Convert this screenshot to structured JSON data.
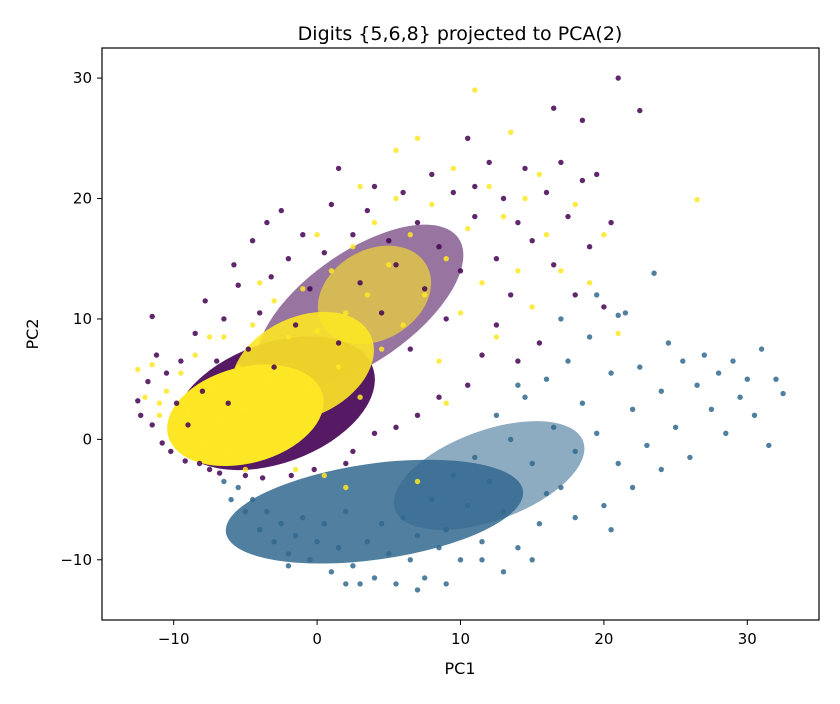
{
  "chart_data": {
    "type": "scatter",
    "title": "Digits {5,6,8} projected to PCA(2)",
    "xlabel": "PC1",
    "ylabel": "PC2",
    "xlim": [
      -15,
      35
    ],
    "ylim": [
      -15,
      32.5
    ],
    "xticks": [
      -10,
      0,
      10,
      20,
      30
    ],
    "yticks": [
      -10,
      0,
      10,
      20,
      30
    ],
    "grid": false,
    "legend": "none",
    "colors": {
      "class_purple": "#440154",
      "class_teal": "#31688e",
      "class_yellow": "#fde725"
    },
    "series": [
      {
        "color": "#440154",
        "points": [
          [
            -12.5,
            3.2
          ],
          [
            -12.3,
            2.0
          ],
          [
            -11.8,
            4.8
          ],
          [
            -11.5,
            1.2
          ],
          [
            -11.5,
            10.2
          ],
          [
            -11.2,
            7.0
          ],
          [
            -10.8,
            -0.3
          ],
          [
            -10.5,
            5.5
          ],
          [
            -10.2,
            -1.0
          ],
          [
            -9.8,
            3.0
          ],
          [
            -9.5,
            6.5
          ],
          [
            -9.2,
            -1.8
          ],
          [
            -9.0,
            1.2
          ],
          [
            -8.5,
            8.8
          ],
          [
            -8.2,
            -2.0
          ],
          [
            -8.0,
            4.0
          ],
          [
            -7.8,
            11.5
          ],
          [
            -7.5,
            -2.5
          ],
          [
            -7.0,
            6.5
          ],
          [
            -6.8,
            -2.8
          ],
          [
            -6.5,
            10.0
          ],
          [
            -6.2,
            3.0
          ],
          [
            -5.8,
            14.5
          ],
          [
            -5.5,
            12.8
          ],
          [
            -5.0,
            -3.0
          ],
          [
            -4.8,
            7.5
          ],
          [
            -4.5,
            16.5
          ],
          [
            -4.0,
            10.5
          ],
          [
            -3.8,
            -3.2
          ],
          [
            -3.5,
            18.0
          ],
          [
            -3.2,
            13.5
          ],
          [
            -3.0,
            6.0
          ],
          [
            -2.5,
            19.0
          ],
          [
            -2.0,
            15.0
          ],
          [
            -1.8,
            -3.0
          ],
          [
            -1.5,
            9.5
          ],
          [
            -1.0,
            17.0
          ],
          [
            -0.5,
            12.5
          ],
          [
            -0.2,
            -2.5
          ],
          [
            0.5,
            15.5
          ],
          [
            1.0,
            19.5
          ],
          [
            1.5,
            8.0
          ],
          [
            1.5,
            22.5
          ],
          [
            2.0,
            -2.0
          ],
          [
            2.5,
            17.0
          ],
          [
            3.0,
            13.0
          ],
          [
            3.5,
            19.0
          ],
          [
            4.0,
            21.0
          ],
          [
            4.5,
            10.5
          ],
          [
            5.0,
            16.5
          ],
          [
            5.5,
            14.5
          ],
          [
            6.0,
            20.5
          ],
          [
            6.5,
            7.5
          ],
          [
            7.0,
            18.0
          ],
          [
            7.5,
            12.5
          ],
          [
            8.0,
            22.0
          ],
          [
            8.5,
            16.0
          ],
          [
            9.0,
            10.0
          ],
          [
            9.5,
            20.5
          ],
          [
            10.0,
            14.0
          ],
          [
            10.5,
            25.0
          ],
          [
            11.0,
            18.5
          ],
          [
            11.5,
            7.0
          ],
          [
            12.0,
            23.0
          ],
          [
            12.5,
            15.0
          ],
          [
            13.0,
            20.0
          ],
          [
            13.5,
            12.0
          ],
          [
            14.0,
            18.0
          ],
          [
            14.5,
            22.5
          ],
          [
            15.0,
            16.5
          ],
          [
            15.5,
            8.0
          ],
          [
            16.0,
            20.5
          ],
          [
            16.5,
            14.5
          ],
          [
            17.0,
            23.0
          ],
          [
            17.5,
            18.5
          ],
          [
            18.0,
            12.0
          ],
          [
            18.5,
            21.5
          ],
          [
            19.0,
            16.0
          ],
          [
            19.5,
            22.0
          ],
          [
            20.0,
            11.0
          ],
          [
            20.5,
            18.0
          ],
          [
            21.0,
            30.0
          ],
          [
            22.5,
            27.3
          ],
          [
            16.5,
            27.5
          ],
          [
            18.5,
            26.5
          ],
          [
            11.0,
            21.0
          ],
          [
            12.5,
            9.5
          ],
          [
            14.0,
            6.5
          ],
          [
            10.5,
            4.5
          ],
          [
            8.5,
            3.5
          ],
          [
            7.0,
            2.0
          ],
          [
            5.5,
            1.0
          ],
          [
            4.0,
            0.5
          ],
          [
            2.5,
            -1.0
          ]
        ]
      },
      {
        "color": "#31688e",
        "points": [
          [
            -6.5,
            -3.5
          ],
          [
            -6.0,
            -5.0
          ],
          [
            -5.5,
            -4.0
          ],
          [
            -5.0,
            -6.0
          ],
          [
            -4.5,
            -5.0
          ],
          [
            -4.0,
            -7.5
          ],
          [
            -3.5,
            -6.0
          ],
          [
            -3.0,
            -8.5
          ],
          [
            -2.5,
            -7.0
          ],
          [
            -2.0,
            -9.5
          ],
          [
            -1.5,
            -8.0
          ],
          [
            -1.0,
            -6.5
          ],
          [
            -0.5,
            -10.0
          ],
          [
            0.0,
            -8.5
          ],
          [
            0.5,
            -7.0
          ],
          [
            1.0,
            -11.0
          ],
          [
            1.5,
            -9.0
          ],
          [
            2.0,
            -6.0
          ],
          [
            2.5,
            -10.5
          ],
          [
            3.0,
            -12.0
          ],
          [
            3.5,
            -8.5
          ],
          [
            4.0,
            -11.5
          ],
          [
            4.5,
            -7.0
          ],
          [
            5.0,
            -9.5
          ],
          [
            5.5,
            -12.0
          ],
          [
            6.0,
            -6.5
          ],
          [
            6.5,
            -10.0
          ],
          [
            7.0,
            -8.0
          ],
          [
            7.5,
            -11.5
          ],
          [
            8.0,
            -5.0
          ],
          [
            8.5,
            -9.0
          ],
          [
            9.0,
            -7.5
          ],
          [
            9.5,
            -3.0
          ],
          [
            10.0,
            -10.0
          ],
          [
            10.5,
            -5.5
          ],
          [
            11.0,
            -1.5
          ],
          [
            11.5,
            -8.5
          ],
          [
            12.0,
            -3.5
          ],
          [
            12.5,
            2.0
          ],
          [
            13.0,
            -6.0
          ],
          [
            13.5,
            0.0
          ],
          [
            14.0,
            -9.0
          ],
          [
            14.5,
            3.5
          ],
          [
            15.0,
            -2.0
          ],
          [
            15.5,
            -7.0
          ],
          [
            16.0,
            5.0
          ],
          [
            16.5,
            1.0
          ],
          [
            17.0,
            -4.0
          ],
          [
            17.5,
            6.5
          ],
          [
            18.0,
            -1.0
          ],
          [
            18.5,
            3.0
          ],
          [
            19.0,
            8.5
          ],
          [
            19.5,
            0.5
          ],
          [
            20.0,
            -5.5
          ],
          [
            20.5,
            5.5
          ],
          [
            21.0,
            -2.0
          ],
          [
            21.5,
            10.5
          ],
          [
            22.0,
            2.5
          ],
          [
            22.5,
            6.0
          ],
          [
            23.0,
            -0.5
          ],
          [
            23.5,
            13.8
          ],
          [
            24.0,
            4.0
          ],
          [
            24.5,
            8.0
          ],
          [
            25.0,
            1.0
          ],
          [
            25.5,
            6.5
          ],
          [
            26.0,
            -1.5
          ],
          [
            26.5,
            4.5
          ],
          [
            27.0,
            7.0
          ],
          [
            27.5,
            2.5
          ],
          [
            28.0,
            5.5
          ],
          [
            28.5,
            0.5
          ],
          [
            29.0,
            6.5
          ],
          [
            29.5,
            3.5
          ],
          [
            30.0,
            5.0
          ],
          [
            30.5,
            2.0
          ],
          [
            31.0,
            7.5
          ],
          [
            31.5,
            -0.5
          ],
          [
            32.0,
            5.0
          ],
          [
            32.5,
            3.8
          ],
          [
            20.5,
            -7.5
          ],
          [
            22.0,
            -4.0
          ],
          [
            24.0,
            -2.5
          ],
          [
            18.0,
            -6.5
          ],
          [
            15.0,
            -10.0
          ],
          [
            13.0,
            -11.0
          ],
          [
            11.5,
            -10.0
          ],
          [
            9.0,
            -12.0
          ],
          [
            7.0,
            -12.5
          ],
          [
            2.0,
            -12.0
          ],
          [
            -2.0,
            -10.5
          ],
          [
            21.0,
            10.3
          ],
          [
            19.5,
            12.0
          ],
          [
            17.0,
            10.0
          ],
          [
            16.0,
            -4.5
          ],
          [
            14.0,
            4.5
          ]
        ]
      },
      {
        "color": "#fde725",
        "points": [
          [
            -12.5,
            5.8
          ],
          [
            -12.0,
            3.5
          ],
          [
            -11.5,
            6.2
          ],
          [
            -11.0,
            2.0
          ],
          [
            -10.5,
            4.0
          ],
          [
            -10.0,
            0.5
          ],
          [
            -9.5,
            5.5
          ],
          [
            -9.0,
            2.5
          ],
          [
            -8.5,
            7.0
          ],
          [
            -8.0,
            -0.5
          ],
          [
            -7.5,
            4.5
          ],
          [
            -7.0,
            1.5
          ],
          [
            -6.5,
            8.5
          ],
          [
            -6.0,
            -1.0
          ],
          [
            -5.5,
            6.0
          ],
          [
            -5.0,
            2.5
          ],
          [
            -4.5,
            9.5
          ],
          [
            -4.0,
            -1.5
          ],
          [
            -3.5,
            5.0
          ],
          [
            -3.0,
            11.5
          ],
          [
            -2.5,
            2.0
          ],
          [
            -2.0,
            8.5
          ],
          [
            -1.5,
            -2.5
          ],
          [
            -1.0,
            12.5
          ],
          [
            -0.5,
            4.5
          ],
          [
            0.0,
            9.0
          ],
          [
            0.5,
            -3.0
          ],
          [
            1.0,
            14.0
          ],
          [
            1.5,
            6.0
          ],
          [
            2.0,
            10.5
          ],
          [
            2.5,
            16.0
          ],
          [
            3.0,
            3.5
          ],
          [
            3.5,
            12.0
          ],
          [
            4.0,
            18.0
          ],
          [
            4.5,
            7.5
          ],
          [
            5.0,
            14.5
          ],
          [
            5.5,
            20.0
          ],
          [
            6.0,
            9.5
          ],
          [
            6.5,
            17.0
          ],
          [
            7.0,
            25.0
          ],
          [
            7.5,
            12.0
          ],
          [
            8.0,
            19.5
          ],
          [
            8.5,
            6.5
          ],
          [
            9.0,
            15.0
          ],
          [
            9.5,
            22.5
          ],
          [
            10.0,
            10.5
          ],
          [
            10.5,
            17.5
          ],
          [
            11.0,
            29.0
          ],
          [
            11.5,
            13.0
          ],
          [
            12.0,
            21.0
          ],
          [
            12.5,
            8.5
          ],
          [
            13.0,
            18.5
          ],
          [
            13.5,
            25.5
          ],
          [
            14.0,
            14.0
          ],
          [
            14.5,
            20.0
          ],
          [
            15.0,
            11.0
          ],
          [
            15.5,
            22.0
          ],
          [
            16.0,
            17.0
          ],
          [
            17.0,
            14.0
          ],
          [
            18.0,
            19.5
          ],
          [
            19.0,
            13.0
          ],
          [
            20.0,
            17.0
          ],
          [
            21.0,
            8.8
          ],
          [
            26.5,
            19.9
          ],
          [
            2.0,
            -4.0
          ],
          [
            -5.0,
            -2.5
          ],
          [
            -7.5,
            8.5
          ],
          [
            -4.0,
            13.0
          ],
          [
            0.0,
            17.0
          ],
          [
            3.0,
            21.0
          ],
          [
            5.5,
            24.0
          ],
          [
            9.0,
            3.0
          ],
          [
            7.0,
            -3.5
          ],
          [
            -9.0,
            -1.0
          ],
          [
            -11.0,
            3.0
          ]
        ]
      }
    ]
  }
}
